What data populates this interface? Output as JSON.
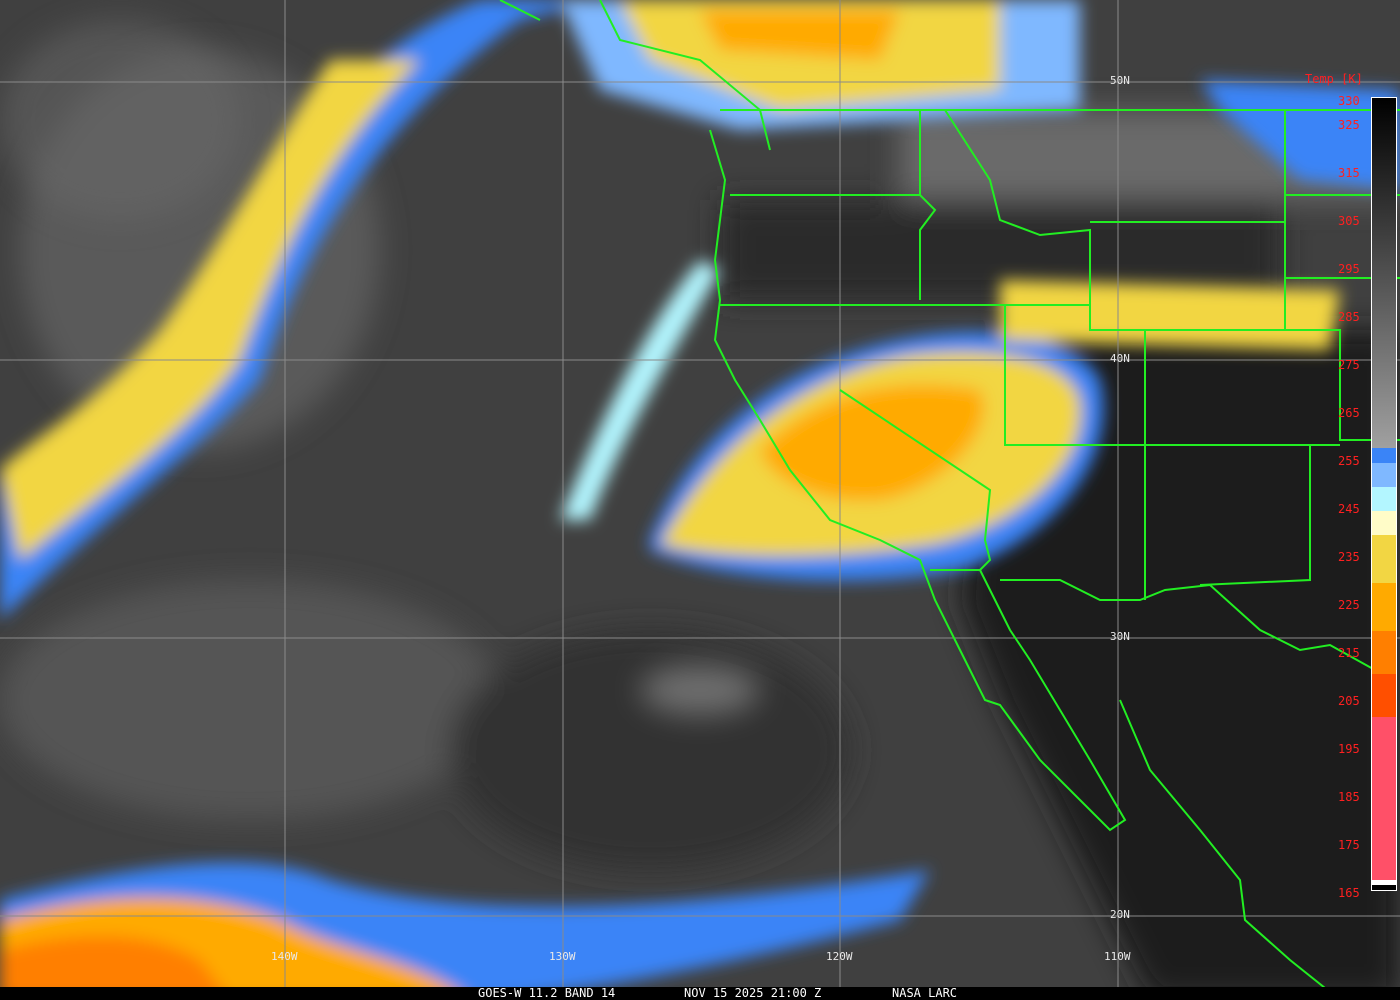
{
  "caption": {
    "product": "GOES-W 11.2 BAND 14",
    "datetime": "NOV 15 2025 21:00 Z",
    "credit": "NASA LARC"
  },
  "grid": {
    "longitudes": [
      "140W",
      "130W",
      "120W",
      "110W"
    ],
    "latitudes": [
      "50N",
      "40N",
      "30N",
      "20N"
    ]
  },
  "legend": {
    "title": "Temp [K]",
    "ticks": [
      330,
      325,
      315,
      305,
      295,
      285,
      275,
      265,
      255,
      245,
      235,
      225,
      215,
      205,
      195,
      185,
      175,
      165
    ],
    "range": [
      330,
      165
    ],
    "segments": [
      {
        "from": 330,
        "to": 257,
        "color": "gradient #000000→#a0a0a0"
      },
      {
        "from": 257,
        "to": 254,
        "color": "#3a84f7"
      },
      {
        "from": 254,
        "to": 249,
        "color": "#7fb8ff"
      },
      {
        "from": 249,
        "to": 244,
        "color": "#b3f6ff"
      },
      {
        "from": 244,
        "to": 239,
        "color": "#fffcc8"
      },
      {
        "from": 239,
        "to": 229,
        "color": "#f2d643"
      },
      {
        "from": 229,
        "to": 219,
        "color": "#ffaa00"
      },
      {
        "from": 219,
        "to": 210,
        "color": "#ff7f00"
      },
      {
        "from": 210,
        "to": 201,
        "color": "#ff4f00"
      },
      {
        "from": 201,
        "to": 167,
        "color": "#ff5068"
      },
      {
        "from": 167,
        "to": 166,
        "color": "#ffffff"
      }
    ]
  },
  "colors": {
    "borders": "#22ee22",
    "grid": "#8a8a8a",
    "labels": "#ff2020"
  }
}
